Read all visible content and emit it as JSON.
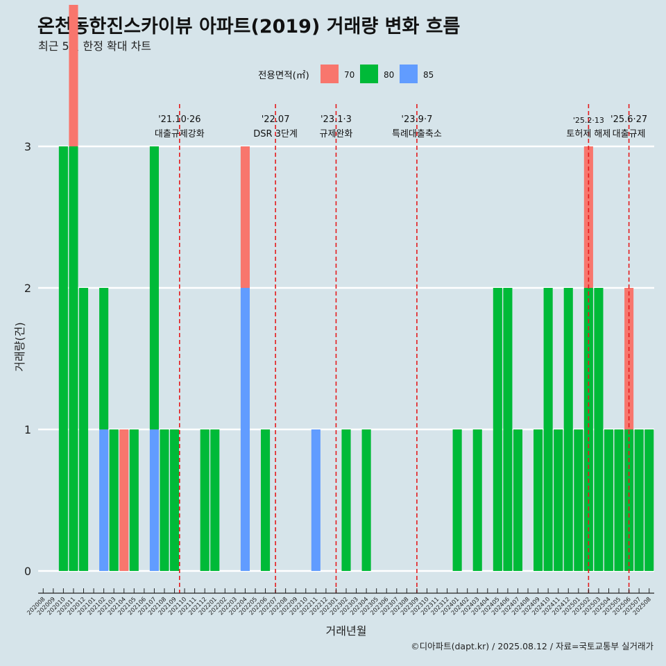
{
  "title": "온천동한진스카이뷰 아파트(2019) 거래량 변화 흐름",
  "subtitle": "최근 5년 한정 확대 차트",
  "caption": "©디아파트(dapt.kr) / 2025.08.12 / 자료=국토교통부 실거래가",
  "chart_data": {
    "type": "bar",
    "stacked": true,
    "title": "온천동한진스카이뷰 아파트(2019) 거래량 변화 흐름",
    "subtitle": "최근 5년 한정 확대 차트",
    "xlabel": "거래년월",
    "ylabel": "거래량(건)",
    "ylim": [
      0,
      3.3
    ],
    "yticks": [
      0,
      1,
      2,
      3
    ],
    "legend": {
      "title": "전용면적(㎡)",
      "position": "top"
    },
    "grid": true,
    "colors": {
      "70": "#f8766d",
      "80": "#00ba38",
      "85": "#619cff"
    },
    "categories": [
      "202008",
      "202009",
      "202010",
      "202011",
      "202012",
      "202101",
      "202102",
      "202103",
      "202104",
      "202105",
      "202106",
      "202107",
      "202108",
      "202109",
      "202110",
      "202111",
      "202112",
      "202201",
      "202202",
      "202203",
      "202204",
      "202205",
      "202206",
      "202207",
      "202208",
      "202209",
      "202210",
      "202211",
      "202212",
      "202301",
      "202302",
      "202303",
      "202304",
      "202305",
      "202306",
      "202307",
      "202308",
      "202309",
      "202310",
      "202311",
      "202312",
      "202401",
      "202402",
      "202403",
      "202404",
      "202405",
      "202406",
      "202407",
      "202408",
      "202409",
      "202410",
      "202411",
      "202412",
      "202501",
      "202502",
      "202503",
      "202504",
      "202505",
      "202506",
      "202507",
      "202508"
    ],
    "bars": [
      {
        "x": "202010",
        "area": "80",
        "count": 3
      },
      {
        "x": "202011",
        "area": "70",
        "count": 1
      },
      {
        "x": "202011",
        "area": "80",
        "count": 3
      },
      {
        "x": "202012",
        "area": "80",
        "count": 2
      },
      {
        "x": "202102",
        "area": "80",
        "count": 1
      },
      {
        "x": "202102",
        "area": "85",
        "count": 1
      },
      {
        "x": "202103",
        "area": "80",
        "count": 1
      },
      {
        "x": "202104",
        "area": "70",
        "count": 1
      },
      {
        "x": "202105",
        "area": "80",
        "count": 1
      },
      {
        "x": "202107",
        "area": "80",
        "count": 2
      },
      {
        "x": "202107",
        "area": "85",
        "count": 1
      },
      {
        "x": "202108",
        "area": "80",
        "count": 1
      },
      {
        "x": "202109",
        "area": "80",
        "count": 1
      },
      {
        "x": "202112",
        "area": "80",
        "count": 1
      },
      {
        "x": "202201",
        "area": "80",
        "count": 1
      },
      {
        "x": "202204",
        "area": "70",
        "count": 1
      },
      {
        "x": "202204",
        "area": "85",
        "count": 2
      },
      {
        "x": "202206",
        "area": "80",
        "count": 1
      },
      {
        "x": "202211",
        "area": "85",
        "count": 1
      },
      {
        "x": "202302",
        "area": "80",
        "count": 1
      },
      {
        "x": "202304",
        "area": "80",
        "count": 1
      },
      {
        "x": "202401",
        "area": "80",
        "count": 1
      },
      {
        "x": "202403",
        "area": "80",
        "count": 1
      },
      {
        "x": "202405",
        "area": "80",
        "count": 2
      },
      {
        "x": "202406",
        "area": "80",
        "count": 2
      },
      {
        "x": "202407",
        "area": "80",
        "count": 1
      },
      {
        "x": "202409",
        "area": "80",
        "count": 1
      },
      {
        "x": "202410",
        "area": "80",
        "count": 2
      },
      {
        "x": "202411",
        "area": "80",
        "count": 1
      },
      {
        "x": "202412",
        "area": "80",
        "count": 2
      },
      {
        "x": "202501",
        "area": "80",
        "count": 1
      },
      {
        "x": "202502",
        "area": "70",
        "count": 1
      },
      {
        "x": "202502",
        "area": "80",
        "count": 2
      },
      {
        "x": "202503",
        "area": "80",
        "count": 2
      },
      {
        "x": "202504",
        "area": "80",
        "count": 1
      },
      {
        "x": "202505",
        "area": "80",
        "count": 1
      },
      {
        "x": "202506",
        "area": "70",
        "count": 1
      },
      {
        "x": "202506",
        "area": "80",
        "count": 1
      },
      {
        "x": "202507",
        "area": "80",
        "count": 1
      },
      {
        "x": "202508",
        "area": "80",
        "count": 1
      }
    ],
    "events": [
      {
        "x": "202110",
        "offset": -0.5,
        "date": "'21.10·26",
        "label": "대출규제강화"
      },
      {
        "x": "202207",
        "offset": 0,
        "date": "'22.07",
        "label": "DSR 3단계"
      },
      {
        "x": "202301",
        "offset": 0,
        "date": "'23.1·3",
        "label": "규제완화"
      },
      {
        "x": "202309",
        "offset": 0,
        "date": "'23.9·7",
        "label": "특례대출축소"
      },
      {
        "x": "202502",
        "offset": 0,
        "date": "'25.2·13",
        "label": "토허제 해제"
      },
      {
        "x": "202506",
        "offset": 0,
        "date": "'25.6·27",
        "label": "대출규제"
      }
    ]
  }
}
